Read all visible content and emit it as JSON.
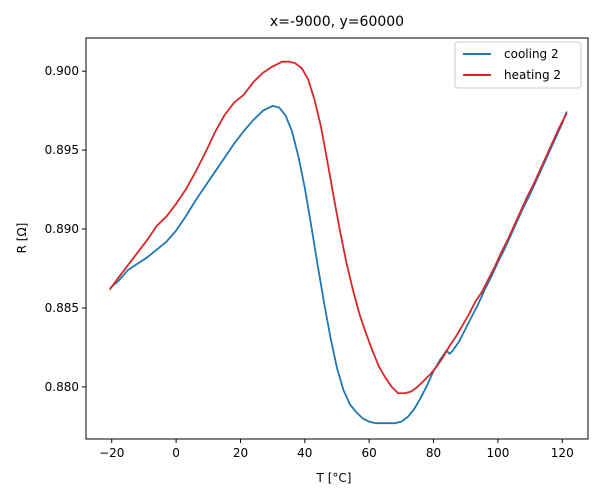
{
  "chart_data": {
    "type": "line",
    "title": "x=-9000, y=60000",
    "xlabel": "T [°C]",
    "ylabel": "R [Ω]",
    "xlim": [
      -28,
      128
    ],
    "ylim": [
      0.8767,
      0.9021
    ],
    "xticks": [
      -20,
      0,
      20,
      40,
      60,
      80,
      100,
      120
    ],
    "xtick_labels": [
      "−20",
      "0",
      "20",
      "40",
      "60",
      "80",
      "100",
      "120"
    ],
    "yticks": [
      0.88,
      0.885,
      0.89,
      0.895,
      0.9
    ],
    "ytick_labels": [
      "0.880",
      "0.885",
      "0.890",
      "0.895",
      "0.900"
    ],
    "grid": false,
    "legend_position": "top-right",
    "series": [
      {
        "name": "cooling 2",
        "color": "#1f77b4",
        "x": [
          -20.3,
          -18,
          -15,
          -12,
          -9,
          -6,
          -3,
          0,
          3,
          6,
          9,
          12,
          15,
          18,
          21,
          24,
          27,
          30,
          32,
          34,
          36,
          38,
          40,
          42,
          44,
          46,
          48,
          50,
          52,
          54,
          56,
          58,
          60,
          62,
          64,
          66,
          68,
          70,
          72,
          74,
          76,
          78,
          80,
          82,
          84,
          85,
          86,
          88,
          90,
          92,
          94,
          96,
          98,
          100,
          102,
          104,
          106,
          108,
          110,
          112,
          114,
          116,
          118,
          120,
          121.3
        ],
        "y": [
          0.8863,
          0.8867,
          0.8874,
          0.8878,
          0.8882,
          0.8887,
          0.8892,
          0.8899,
          0.8908,
          0.8918,
          0.8927,
          0.8936,
          0.8945,
          0.8954,
          0.8962,
          0.8969,
          0.8975,
          0.8978,
          0.8977,
          0.8972,
          0.8962,
          0.8946,
          0.8926,
          0.8902,
          0.8877,
          0.8853,
          0.8831,
          0.8812,
          0.8798,
          0.8789,
          0.8784,
          0.878,
          0.8778,
          0.8777,
          0.8777,
          0.8777,
          0.8777,
          0.8778,
          0.8781,
          0.8786,
          0.8793,
          0.8801,
          0.881,
          0.8817,
          0.8823,
          0.8821,
          0.8823,
          0.8829,
          0.8837,
          0.8845,
          0.8853,
          0.8862,
          0.887,
          0.8879,
          0.8887,
          0.8896,
          0.8905,
          0.8914,
          0.8922,
          0.8931,
          0.894,
          0.8949,
          0.8958,
          0.8967,
          0.8974
        ]
      },
      {
        "name": "heating 2",
        "color": "#d62728",
        "x": [
          -20.5,
          -18,
          -15,
          -12,
          -9,
          -6,
          -3,
          0,
          3,
          6,
          9,
          12,
          15,
          18,
          21,
          24,
          27,
          30,
          33,
          35,
          37,
          39,
          41,
          43,
          45,
          47,
          49,
          51,
          53,
          55,
          57,
          59,
          61,
          63,
          65,
          67,
          69,
          71,
          73,
          75,
          77,
          79,
          81,
          83,
          85,
          87,
          89,
          91,
          93,
          95,
          97,
          99,
          101,
          103,
          105,
          107,
          109,
          111,
          113,
          115,
          117,
          119,
          121.3
        ],
        "y": [
          0.8862,
          0.8869,
          0.8877,
          0.8885,
          0.8893,
          0.8902,
          0.8908,
          0.8916,
          0.8925,
          0.8936,
          0.8948,
          0.8961,
          0.8972,
          0.898,
          0.8985,
          0.8993,
          0.8999,
          0.9003,
          0.9006,
          0.9006,
          0.9005,
          0.9002,
          0.8995,
          0.8982,
          0.8965,
          0.8943,
          0.892,
          0.8898,
          0.8878,
          0.8861,
          0.8846,
          0.8834,
          0.8823,
          0.8813,
          0.8806,
          0.88,
          0.8796,
          0.8796,
          0.8797,
          0.88,
          0.8804,
          0.8808,
          0.8813,
          0.8819,
          0.8826,
          0.8832,
          0.8839,
          0.8846,
          0.8854,
          0.886,
          0.8868,
          0.8876,
          0.8885,
          0.8893,
          0.8902,
          0.8911,
          0.892,
          0.8928,
          0.8937,
          0.8946,
          0.8955,
          0.8964,
          0.8973
        ]
      }
    ]
  }
}
